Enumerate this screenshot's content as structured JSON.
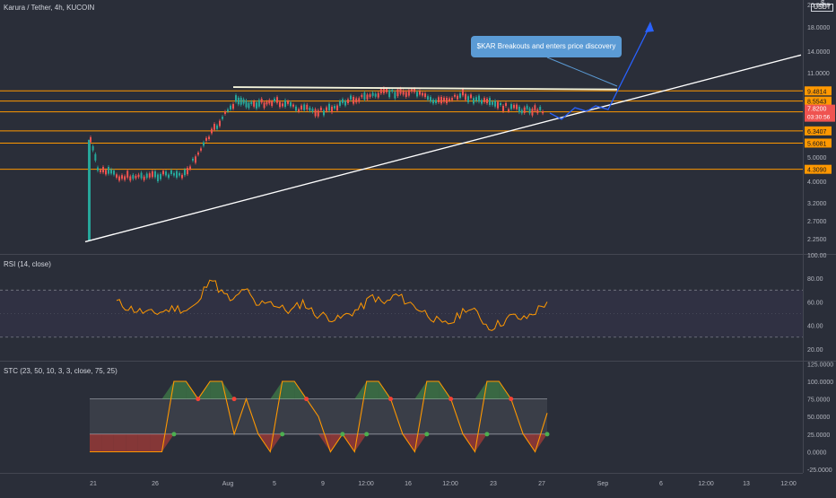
{
  "header": {
    "symbol": "Karura / Tether, 4h, KUCOIN",
    "currency": "USDT",
    "price_marker": "$"
  },
  "annotation": {
    "callout_text": "$KAR Breakouts and enters price discovery"
  },
  "colors": {
    "background": "#2a2e39",
    "up_candle": "#26a69a",
    "down_candle": "#ef5350",
    "level_line": "#ff9800",
    "trendline": "#ffffff",
    "callout_bg": "#5b9bd5",
    "arrow": "#2962ff",
    "rsi_line": "#ff9800",
    "stc_green_fill": "#4caf50",
    "stc_red_fill": "#f44336"
  },
  "chart_data": [
    {
      "type": "candlestick",
      "title": "Karura / Tether, 4h, KUCOIN",
      "y_scale": "log",
      "ylim": [
        2.05,
        22
      ],
      "y_ticks": [
        "20.0000",
        "18.0000",
        "14.0000",
        "11.0000",
        "8.5543",
        "7.8200",
        "03:30:56",
        "7.6801",
        "6.3407",
        "5.6081",
        "5.0000",
        "4.3090",
        "4.0000",
        "3.2000",
        "2.7000",
        "2.2500"
      ],
      "x_labels": [
        "21",
        "26",
        "Aug",
        "5",
        "9",
        "12:00",
        "16",
        "12:00",
        "23",
        "27",
        "Sep",
        "6",
        "12:00",
        "13",
        "12:00"
      ],
      "current_price": 7.82,
      "countdown": "03:30:56",
      "horizontal_levels": [
        {
          "value": 9.4814,
          "label": "9.4814"
        },
        {
          "value": 8.5543,
          "label": "8.5543"
        },
        {
          "value": 7.6801,
          "label": "7.6801"
        },
        {
          "value": 6.3407,
          "label": "6.3407"
        },
        {
          "value": 5.6081,
          "label": "5.6081"
        },
        {
          "value": 4.309,
          "label": "4.3090"
        }
      ],
      "series_path": [
        {
          "date": "Jul 21",
          "close": 2.1
        },
        {
          "date": "Jul 21",
          "close": 5.8
        },
        {
          "date": "Jul 22",
          "close": 4.3
        },
        {
          "date": "Jul 24",
          "close": 4.0
        },
        {
          "date": "Jul 26",
          "close": 4.05
        },
        {
          "date": "Jul 29",
          "close": 4.1
        },
        {
          "date": "Jul 31",
          "close": 6.2
        },
        {
          "date": "Aug 1",
          "close": 8.6
        },
        {
          "date": "Aug 3",
          "close": 8.3
        },
        {
          "date": "Aug 5",
          "close": 8.6
        },
        {
          "date": "Aug 7",
          "close": 7.9
        },
        {
          "date": "Aug 9",
          "close": 7.7
        },
        {
          "date": "Aug 11",
          "close": 8.7
        },
        {
          "date": "Aug 14",
          "close": 9.3
        },
        {
          "date": "Aug 16",
          "close": 9.4
        },
        {
          "date": "Aug 18",
          "close": 8.5
        },
        {
          "date": "Aug 20",
          "close": 9.1
        },
        {
          "date": "Aug 23",
          "close": 8.3
        },
        {
          "date": "Aug 25",
          "close": 7.9
        },
        {
          "date": "Aug 27",
          "close": 7.82
        }
      ]
    },
    {
      "type": "line",
      "title": "RSI (14, close)",
      "ylim": [
        10,
        100
      ],
      "y_ticks": [
        "100.00",
        "80.00",
        "60.00",
        "40.00",
        "20.00"
      ],
      "bands": [
        70,
        30
      ],
      "values": [
        60,
        55,
        52,
        50,
        52,
        55,
        53,
        58,
        82,
        68,
        60,
        72,
        56,
        62,
        55,
        52,
        60,
        50,
        48,
        45,
        50,
        55,
        65,
        58,
        66,
        60,
        54,
        48,
        40,
        44,
        55,
        50,
        38,
        42,
        48,
        45,
        52,
        60
      ]
    },
    {
      "type": "area",
      "title": "STC (23, 50, 10, 3, 3, close, 75, 25)",
      "ylim": [
        -30,
        128
      ],
      "y_ticks": [
        "125.0000",
        "100.0000",
        "75.0000",
        "50.0000",
        "25.0000",
        "0.0000",
        "-25.0000"
      ],
      "bands": [
        75,
        25
      ],
      "values": [
        0,
        0,
        0,
        0,
        0,
        0,
        0,
        100,
        100,
        75,
        100,
        100,
        25,
        75,
        25,
        0,
        100,
        100,
        75,
        50,
        0,
        25,
        0,
        100,
        100,
        75,
        25,
        0,
        100,
        100,
        75,
        25,
        0,
        100,
        100,
        75,
        25,
        0,
        55
      ]
    }
  ]
}
